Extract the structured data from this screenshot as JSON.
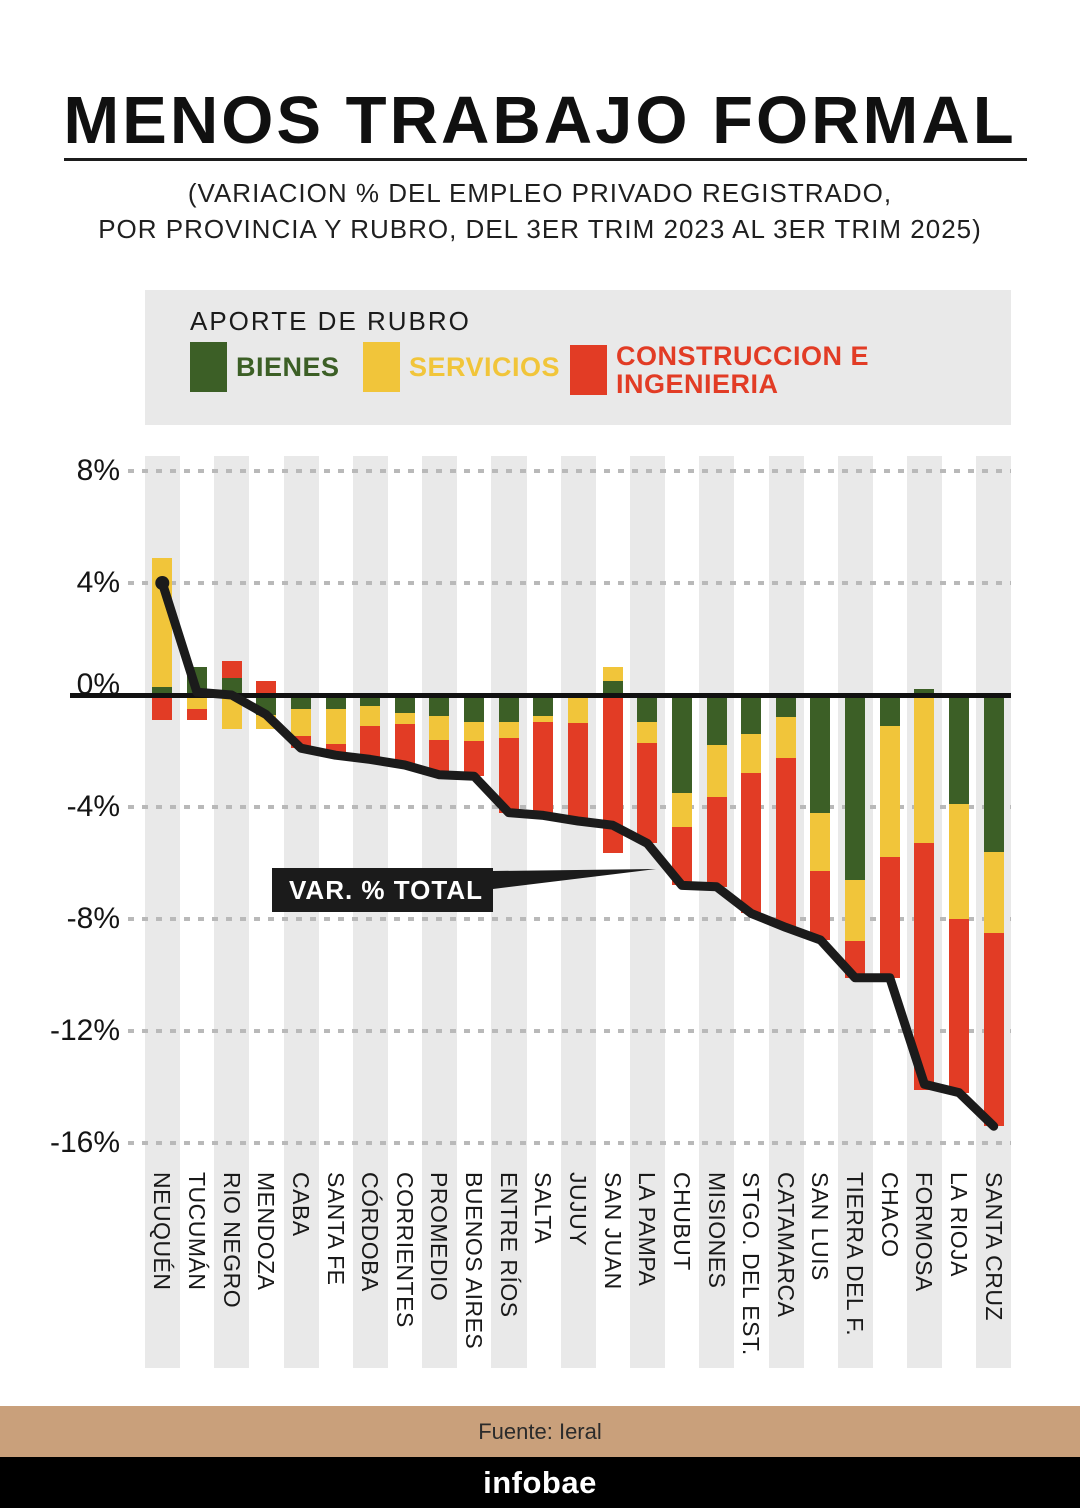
{
  "title": "MENOS TRABAJO FORMAL",
  "subtitle_line1": "(VARIACION % DEL EMPLEO PRIVADO REGISTRADO,",
  "subtitle_line2": "POR PROVINCIA Y RUBRO, DEL 3ER TRIM 2023 AL 3ER TRIM 2025)",
  "legend": {
    "title": "APORTE DE RUBRO",
    "items": [
      {
        "label": "BIENES",
        "color": "#3c5f26"
      },
      {
        "label": "SERVICIOS",
        "color": "#f1c53a"
      },
      {
        "label": "CONSTRUCCION E INGENIERIA",
        "color": "#e23c25"
      }
    ]
  },
  "callout_label": "VAR. % TOTAL",
  "footer": {
    "source": "Fuente: Ieral",
    "brand": "infobae",
    "band_color": "#c9a07b"
  },
  "chart_data": {
    "type": "bar",
    "subtype": "stacked-bar-with-total-line",
    "unit": "%",
    "title": "Variacion % del empleo privado registrado, por provincia y rubro, 3er trim 2023 al 3er trim 2025",
    "categories": [
      "NEUQUÉN",
      "TUCUMÁN",
      "RIO NEGRO",
      "MENDOZA",
      "CABA",
      "SANTA FE",
      "CÓRDOBA",
      "CORRIENTES",
      "PROMEDIO",
      "BUENOS AIRES",
      "ENTRE RÍOS",
      "SALTA",
      "JUJUY",
      "SAN JUAN",
      "LA PAMPA",
      "CHUBUT",
      "MISIONES",
      "STGO. DEL EST.",
      "CATAMARCA",
      "SAN LUIS",
      "TIERRA DEL F.",
      "CHACO",
      "FORMOSA",
      "LA RIOJA",
      "SANTA CRUZ"
    ],
    "series": [
      {
        "name": "BIENES",
        "color": "#3c5f26",
        "values": [
          0.3,
          1.0,
          0.6,
          -0.7,
          -0.5,
          -0.5,
          -0.4,
          -0.65,
          -0.75,
          -0.95,
          -0.95,
          -0.75,
          0,
          0.5,
          -0.95,
          -3.5,
          -1.8,
          -1.4,
          -0.8,
          -4.2,
          -6.6,
          -1.1,
          0.2,
          -3.9,
          -5.6
        ]
      },
      {
        "name": "SERVICIOS",
        "color": "#f1c53a",
        "values": [
          4.6,
          -0.5,
          -1.2,
          -0.5,
          -0.95,
          -1.25,
          -0.7,
          -0.4,
          -0.85,
          -0.7,
          -0.6,
          -0.2,
          -1.0,
          0.5,
          -0.75,
          -1.2,
          -1.85,
          -1.4,
          -1.45,
          -2.1,
          -2.2,
          -4.7,
          -5.3,
          -4.1,
          -2.9
        ]
      },
      {
        "name": "CONSTRUCCION E INGENIERIA",
        "color": "#e23c25",
        "values": [
          -0.9,
          -0.4,
          0.6,
          0.5,
          -0.45,
          -0.4,
          -1.2,
          -1.45,
          -1.25,
          -1.25,
          -2.65,
          -3.35,
          -3.5,
          -5.65,
          -3.6,
          -2.1,
          -3.2,
          -5.0,
          -6.05,
          -2.45,
          -1.3,
          -4.3,
          -8.8,
          -6.2,
          -6.9
        ]
      }
    ],
    "line": {
      "name": "VAR. % TOTAL",
      "color": "#1b1b1b",
      "values": [
        4.0,
        0.1,
        0.0,
        -0.7,
        -1.9,
        -2.15,
        -2.3,
        -2.5,
        -2.85,
        -2.9,
        -4.2,
        -4.3,
        -4.5,
        -4.65,
        -5.3,
        -6.8,
        -6.85,
        -7.8,
        -8.3,
        -8.75,
        -10.1,
        -10.1,
        -13.9,
        -14.2,
        -15.4
      ]
    },
    "yticks": [
      8,
      4,
      0,
      -4,
      -8,
      -12,
      -16
    ],
    "ylim": [
      -16.5,
      8.5
    ],
    "grid": "dotted-horizontal",
    "legend_position": "top"
  }
}
